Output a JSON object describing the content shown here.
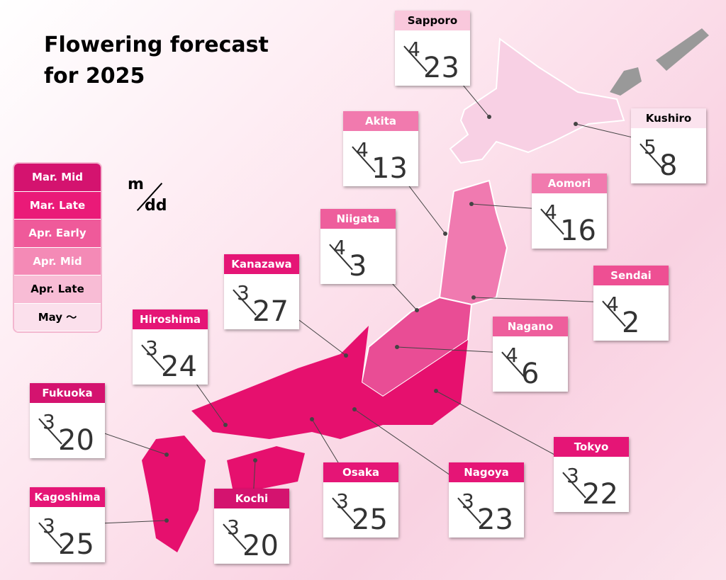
{
  "title": [
    "Flowering forecast",
    "for 2025"
  ],
  "legend": [
    {
      "label": "Mar. Mid",
      "color": "#d4136f"
    },
    {
      "label": "Mar. Late",
      "color": "#ea1a78"
    },
    {
      "label": "Apr. Early",
      "color": "#ef5a9a"
    },
    {
      "label": "Apr. Mid",
      "color": "#f48ab6"
    },
    {
      "label": "Apr. Late",
      "color": "#f8bcd5"
    },
    {
      "label": "May 〜",
      "color": "#fbe0ec"
    }
  ],
  "format": {
    "month": "m",
    "day": "dd"
  },
  "cities": [
    {
      "name": "Sapporo",
      "month": 4,
      "day": 23,
      "color": "#f9c8dc"
    },
    {
      "name": "Akita",
      "month": 4,
      "day": 13,
      "color": "#f17aae"
    },
    {
      "name": "Kushiro",
      "month": 5,
      "day": 8,
      "color": "#fbe3ee"
    },
    {
      "name": "Aomori",
      "month": 4,
      "day": 16,
      "color": "#f17aae"
    },
    {
      "name": "Niigata",
      "month": 4,
      "day": 3,
      "color": "#ee5e9c"
    },
    {
      "name": "Sendai",
      "month": 4,
      "day": 2,
      "color": "#ee4f93"
    },
    {
      "name": "Kanazawa",
      "month": 3,
      "day": 27,
      "color": "#e51576"
    },
    {
      "name": "Nagano",
      "month": 4,
      "day": 6,
      "color": "#ee5e9c"
    },
    {
      "name": "Hiroshima",
      "month": 3,
      "day": 24,
      "color": "#e51576"
    },
    {
      "name": "Fukuoka",
      "month": 3,
      "day": 20,
      "color": "#d4136f"
    },
    {
      "name": "Tokyo",
      "month": 3,
      "day": 22,
      "color": "#e51576"
    },
    {
      "name": "Kagoshima",
      "month": 3,
      "day": 25,
      "color": "#e51576"
    },
    {
      "name": "Kochi",
      "month": 3,
      "day": 20,
      "color": "#d4136f"
    },
    {
      "name": "Osaka",
      "month": 3,
      "day": 25,
      "color": "#e51576"
    },
    {
      "name": "Nagoya",
      "month": 3,
      "day": 23,
      "color": "#e51576"
    }
  ]
}
